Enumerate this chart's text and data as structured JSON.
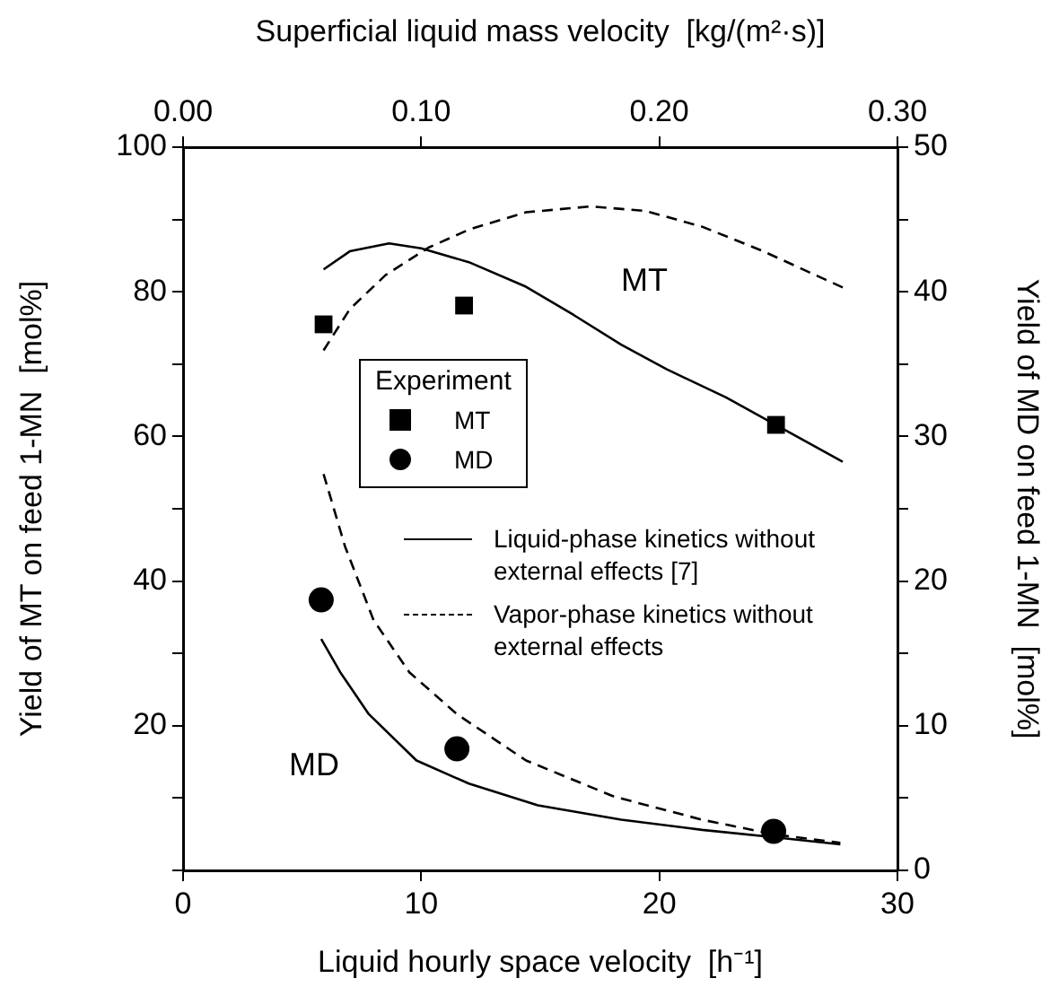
{
  "chart_data": {
    "type": "scatter",
    "xlabel": "Liquid hourly space velocity  [h⁻¹]",
    "x2label": "Superficial liquid mass velocity  [kg/(m²·s)]",
    "ylabel": "Yield of MT on feed 1-MN  [mol%]",
    "y2label": "Yield of MD on feed 1-MN  [mol%]",
    "legend_title": "Experiment",
    "legend": "center",
    "xlim": [
      0,
      30
    ],
    "xticks": [
      0,
      10,
      20,
      30
    ],
    "x2lim": [
      0,
      0.3
    ],
    "x2ticks": [
      {
        "value": 0,
        "label": "0.00"
      },
      {
        "value": 0.1,
        "label": "0.10"
      },
      {
        "value": 0.2,
        "label": "0.20"
      },
      {
        "value": 0.3,
        "label": "0.30"
      }
    ],
    "ylim": [
      0,
      100
    ],
    "yticks": [
      {
        "value": 0,
        "label": null
      },
      {
        "value": 10,
        "label": null
      },
      20,
      {
        "value": 30,
        "label": null
      },
      40,
      {
        "value": 50,
        "label": null
      },
      60,
      {
        "value": 70,
        "label": null
      },
      80,
      {
        "value": 90,
        "label": null
      },
      100
    ],
    "y2lim": [
      0,
      50
    ],
    "y2ticks": [
      0,
      {
        "value": 5,
        "label": null
      },
      10,
      {
        "value": 15,
        "label": null
      },
      20,
      {
        "value": 25,
        "label": null
      },
      30,
      {
        "value": 35,
        "label": null
      },
      40,
      {
        "value": 45,
        "label": null
      },
      50
    ],
    "grid": false,
    "annotations": [
      "MT",
      "MD"
    ],
    "series": [
      {
        "name": "MT",
        "marker": "square",
        "color": "#000000",
        "x": [
          5.9,
          11.8,
          24.9
        ],
        "values": [
          75.5,
          78.1,
          61.6
        ]
      },
      {
        "name": "MD",
        "marker": "circle",
        "axis": "y2",
        "color": "#000000",
        "x": [
          5.8,
          11.5,
          24.8
        ],
        "values": [
          18.7,
          8.4,
          2.7
        ]
      },
      {
        "name": "Liquid-phase kinetics without external effects [7]",
        "type": "line",
        "line_style": "solid",
        "marker": "none",
        "color": "#000000",
        "x": [
          5.9,
          7.0,
          8.65,
          10.0,
          12.0,
          14.4,
          16.4,
          18.4,
          20.3,
          22.8,
          25.0,
          27.7
        ],
        "values": [
          83.1,
          85.6,
          86.7,
          86.0,
          84.1,
          80.7,
          76.8,
          72.7,
          69.3,
          65.4,
          61.4,
          56.5
        ]
      },
      {
        "name": "Vapor-phase kinetics without external effects",
        "type": "line",
        "line_style": "dashed",
        "marker": "none",
        "color": "#000000",
        "x": [
          5.9,
          7.0,
          8.5,
          10.3,
          12.0,
          14.4,
          17.1,
          19.4,
          21.8,
          24.3,
          27.9
        ],
        "values": [
          71.9,
          77.6,
          82.3,
          86.1,
          88.6,
          91.0,
          91.8,
          91.2,
          89.0,
          85.7,
          80.3
        ]
      },
      {
        "type": "line",
        "line_style": "solid",
        "marker": "none",
        "axis": "y2",
        "color": "#000000",
        "x": [
          5.8,
          6.6,
          7.8,
          9.8,
          12.0,
          14.9,
          18.4,
          21.8,
          24.8,
          27.6
        ],
        "values": [
          16.0,
          13.7,
          10.8,
          7.6,
          6.0,
          4.5,
          3.5,
          2.8,
          2.3,
          1.8
        ]
      },
      {
        "type": "line",
        "line_style": "dashed",
        "marker": "none",
        "axis": "y2",
        "color": "#000000",
        "x": [
          5.9,
          6.8,
          8.0,
          9.5,
          11.5,
          14.4,
          18.1,
          21.8,
          24.8,
          27.6
        ],
        "values": [
          27.4,
          22.4,
          17.3,
          13.7,
          10.8,
          7.6,
          5.1,
          3.5,
          2.5,
          1.9
        ]
      }
    ]
  }
}
